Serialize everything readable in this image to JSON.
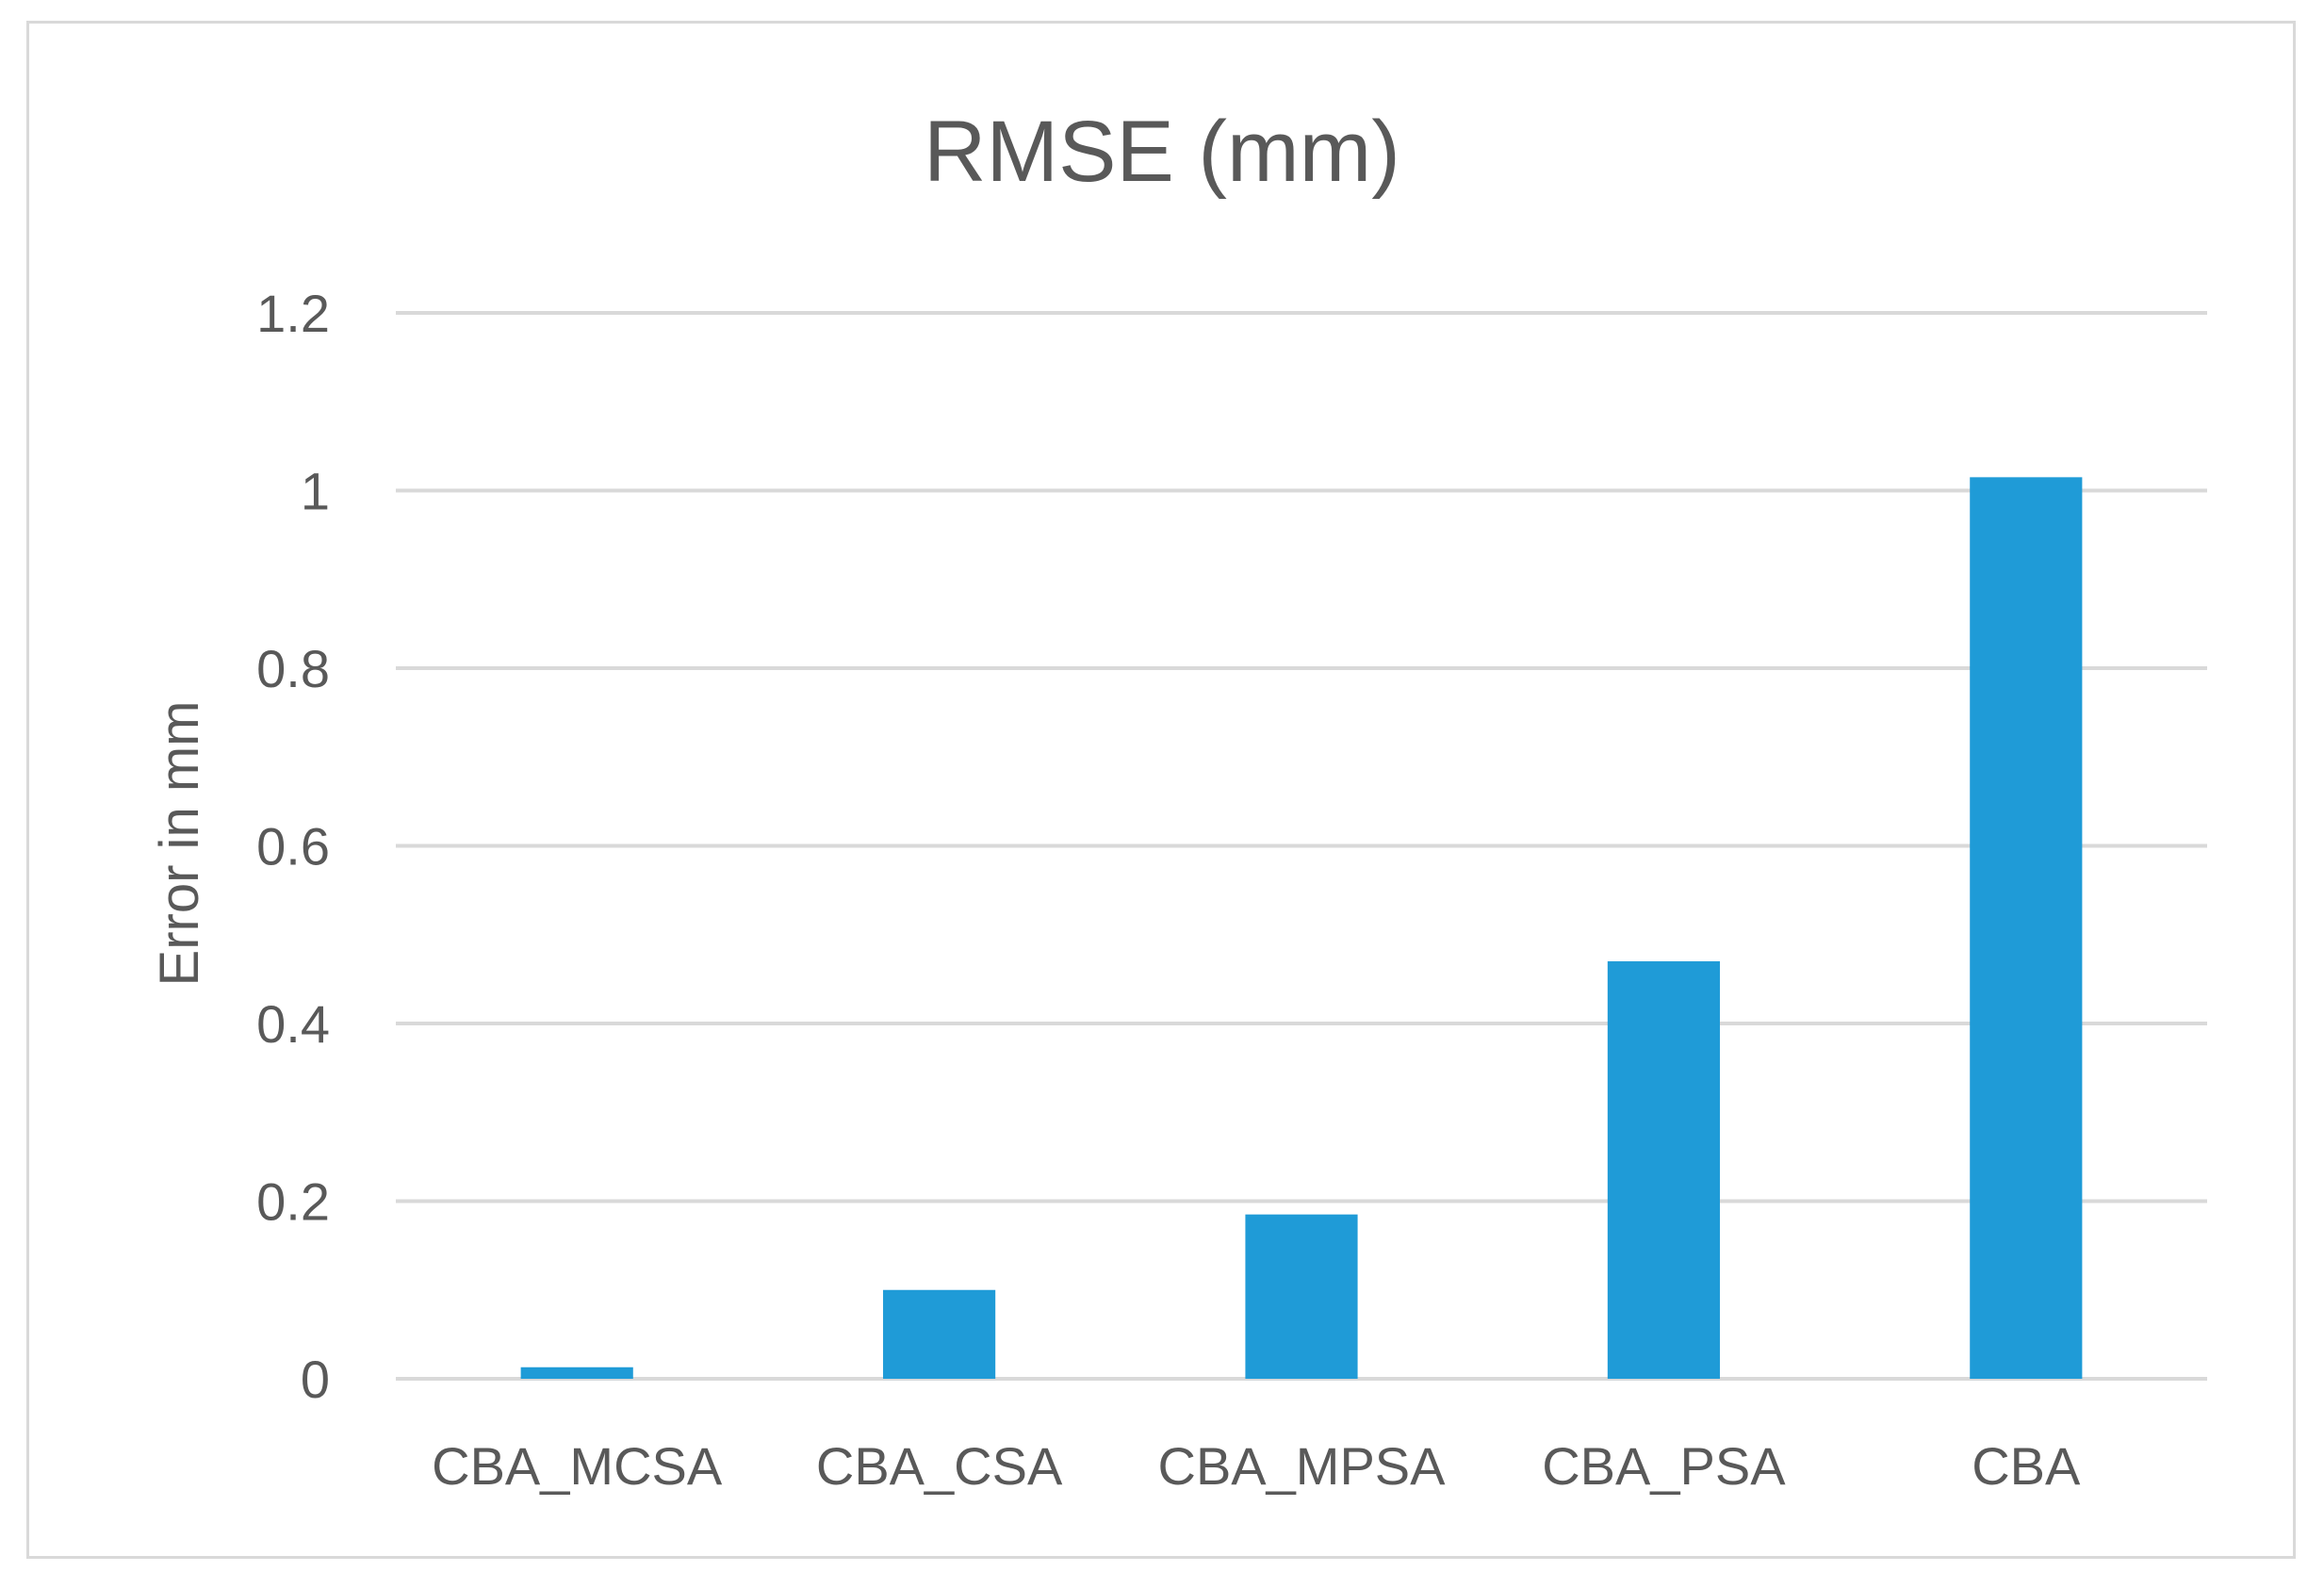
{
  "chart_data": {
    "type": "bar",
    "title": "RMSE (mm)",
    "xlabel": "",
    "ylabel": "Error in mm",
    "categories": [
      "CBA_MCSA",
      "CBA_CSA",
      "CBA_MPSA",
      "CBA_PSA",
      "CBA"
    ],
    "values": [
      0.013,
      0.1,
      0.185,
      0.47,
      1.015
    ],
    "ylim": [
      0,
      1.2
    ],
    "yticks": [
      "0",
      "0.2",
      "0.4",
      "0.6",
      "0.8",
      "1",
      "1.2"
    ],
    "grid": true,
    "legend": "none",
    "bar_color": "#1f9bd7",
    "grid_color": "#d9d9d9",
    "text_color": "#595959"
  }
}
